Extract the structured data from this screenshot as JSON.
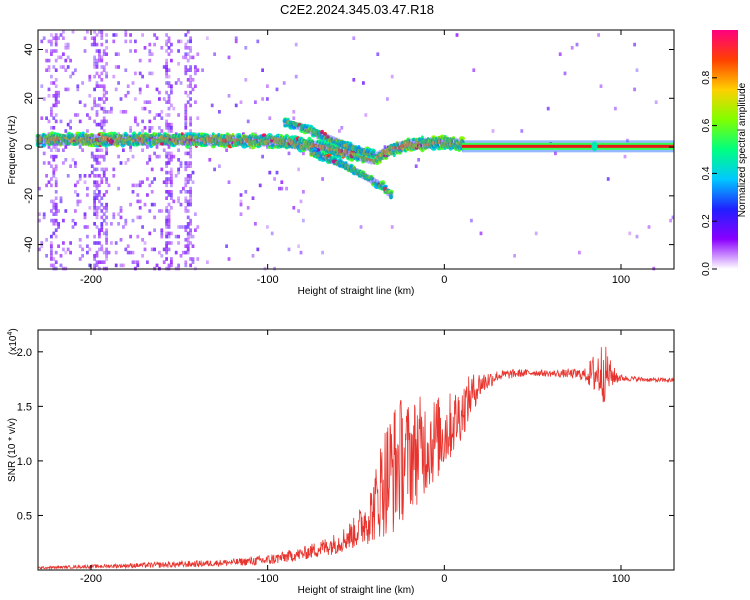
{
  "title": "C2E2.2024.345.03.47.R18",
  "colors": {
    "background": "#ffffff",
    "signal_line": "#e8342e",
    "spectrogram_baseline": "#e81818"
  },
  "chart_data": [
    {
      "type": "heatmap",
      "ylabel": "Frequency (Hz)",
      "xlabel": "Height of straight line (km)",
      "xlim": [
        -230,
        130
      ],
      "ylim": [
        -50,
        48
      ],
      "xticks": [
        "-200",
        "-100",
        "0",
        "100"
      ],
      "yticks": [
        "40",
        "20",
        "0",
        "-20",
        "-40"
      ],
      "xtick_values": [
        -200,
        -100,
        0,
        100
      ],
      "ytick_values": [
        40,
        20,
        0,
        -20,
        -40
      ],
      "colorbar": {
        "label": "Normalized spectral amplitude",
        "range": [
          0,
          1
        ],
        "ticks": [
          "0.0",
          "0.2",
          "0.4",
          "0.6",
          "0.8"
        ],
        "tick_values": [
          0.0,
          0.2,
          0.4,
          0.6,
          0.8
        ],
        "colors": [
          "#ffffff",
          "#8a00ff",
          "#2020ff",
          "#00c8ff",
          "#00ff80",
          "#80ff00",
          "#ffd000",
          "#ff4000",
          "#ff0080"
        ]
      },
      "ridges": [
        {
          "x": [
            -230,
            -200,
            -150,
            -100,
            -90,
            -70,
            -50,
            -40,
            -30,
            -20,
            0,
            10,
            130
          ],
          "y": [
            3,
            3,
            3,
            2.5,
            2,
            0,
            -3,
            -5,
            -1,
            1,
            2,
            1,
            0.3
          ]
        },
        {
          "x": [
            -90,
            -80,
            -70,
            -60,
            -50,
            -40
          ],
          "y": [
            10,
            8,
            5,
            2,
            -1,
            -3
          ]
        },
        {
          "x": [
            -75,
            -65,
            -55,
            -45,
            -35,
            -30
          ],
          "y": [
            -2,
            -5,
            -8,
            -12,
            -16,
            -20
          ]
        }
      ],
      "steady_band": {
        "x_start": 10,
        "x_end": 130,
        "y": 0.3
      }
    },
    {
      "type": "line",
      "xlabel": "Height of straight line (km)",
      "ylabel": "SNR (10 * v/v)",
      "y_multiplier": "(x10",
      "y_multiplier_exp": "4",
      "y_multiplier_close": ")",
      "xlim": [
        -230,
        130
      ],
      "ylim": [
        0.0,
        2.2
      ],
      "xticks": [
        "-200",
        "-100",
        "0",
        "100"
      ],
      "yticks": [
        "2.0",
        "1.5",
        "1.0",
        "0.5"
      ],
      "xtick_values": [
        -200,
        -100,
        0,
        100
      ],
      "ytick_values": [
        2.0,
        1.5,
        1.0,
        0.5
      ],
      "series": [
        {
          "x": [
            -230,
            -180,
            -150,
            -120,
            -100,
            -80,
            -60,
            -50,
            -40,
            -35,
            -30,
            -25,
            -20,
            -15,
            -10,
            -5,
            0,
            5,
            10,
            15,
            20,
            30,
            40,
            50,
            60,
            70,
            80,
            85,
            90,
            95,
            100,
            110,
            120,
            130
          ],
          "y": [
            0.02,
            0.04,
            0.05,
            0.07,
            0.09,
            0.15,
            0.25,
            0.35,
            0.55,
            0.8,
            0.9,
            1.0,
            1.05,
            1.1,
            1.15,
            1.2,
            1.25,
            1.35,
            1.45,
            1.6,
            1.7,
            1.78,
            1.8,
            1.81,
            1.8,
            1.8,
            1.79,
            1.8,
            1.82,
            1.78,
            1.76,
            1.75,
            1.74,
            1.74
          ],
          "noise_amplitude": [
            0.01,
            0.02,
            0.03,
            0.03,
            0.05,
            0.06,
            0.1,
            0.15,
            0.3,
            0.5,
            0.6,
            0.6,
            0.5,
            0.5,
            0.45,
            0.4,
            0.35,
            0.3,
            0.25,
            0.2,
            0.12,
            0.05,
            0.04,
            0.03,
            0.03,
            0.04,
            0.06,
            0.2,
            0.3,
            0.1,
            0.03,
            0.02,
            0.02,
            0.02
          ]
        }
      ]
    }
  ]
}
